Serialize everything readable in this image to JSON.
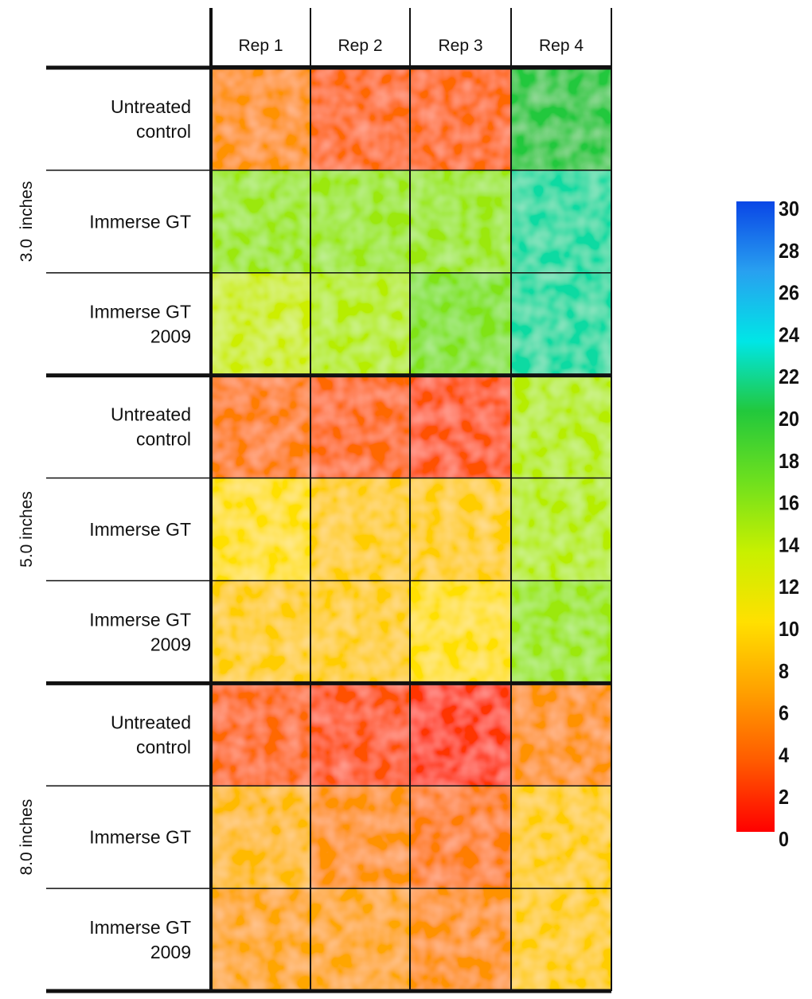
{
  "chart_data": {
    "type": "heatmap",
    "title": "",
    "columns": [
      "Rep 1",
      "Rep 2",
      "Rep 3",
      "Rep 4"
    ],
    "groups": [
      {
        "label": "3.0  inches",
        "rows": [
          "Untreated control",
          "Immerse GT",
          "Immerse GT 2009"
        ]
      },
      {
        "label": "5.0 inches",
        "rows": [
          "Untreated control",
          "Immerse GT",
          "Immerse GT 2009"
        ]
      },
      {
        "label": "8.0 inches",
        "rows": [
          "Untreated control",
          "Immerse GT",
          "Immerse GT 2009"
        ]
      }
    ],
    "row_labels": [
      [
        "Untreated",
        "control"
      ],
      [
        "Immerse GT"
      ],
      [
        "Immerse GT",
        "2009"
      ],
      [
        "Untreated",
        "control"
      ],
      [
        "Immerse GT"
      ],
      [
        "Immerse GT",
        "2009"
      ],
      [
        "Untreated",
        "control"
      ],
      [
        "Immerse GT"
      ],
      [
        "Immerse GT",
        "2009"
      ]
    ],
    "values": [
      [
        6,
        4,
        4,
        20
      ],
      [
        15,
        15,
        15,
        22
      ],
      [
        13,
        14,
        16,
        22
      ],
      [
        5,
        4,
        3,
        14
      ],
      [
        10,
        9,
        9,
        14
      ],
      [
        9,
        9,
        10,
        15
      ],
      [
        4,
        3,
        2,
        6
      ],
      [
        8,
        6,
        5,
        9
      ],
      [
        7,
        7,
        6,
        9
      ]
    ],
    "colorbar": {
      "ticks": [
        30,
        28,
        26,
        24,
        22,
        20,
        18,
        16,
        14,
        12,
        10,
        8,
        6,
        4,
        2,
        0
      ],
      "range": [
        0,
        30
      ],
      "colors": [
        "#ff0000",
        "#ff5a00",
        "#ffa000",
        "#ffe000",
        "#c8f000",
        "#6ee01e",
        "#22c83c",
        "#00e6e6",
        "#28a0f0",
        "#0a46e6"
      ]
    }
  }
}
